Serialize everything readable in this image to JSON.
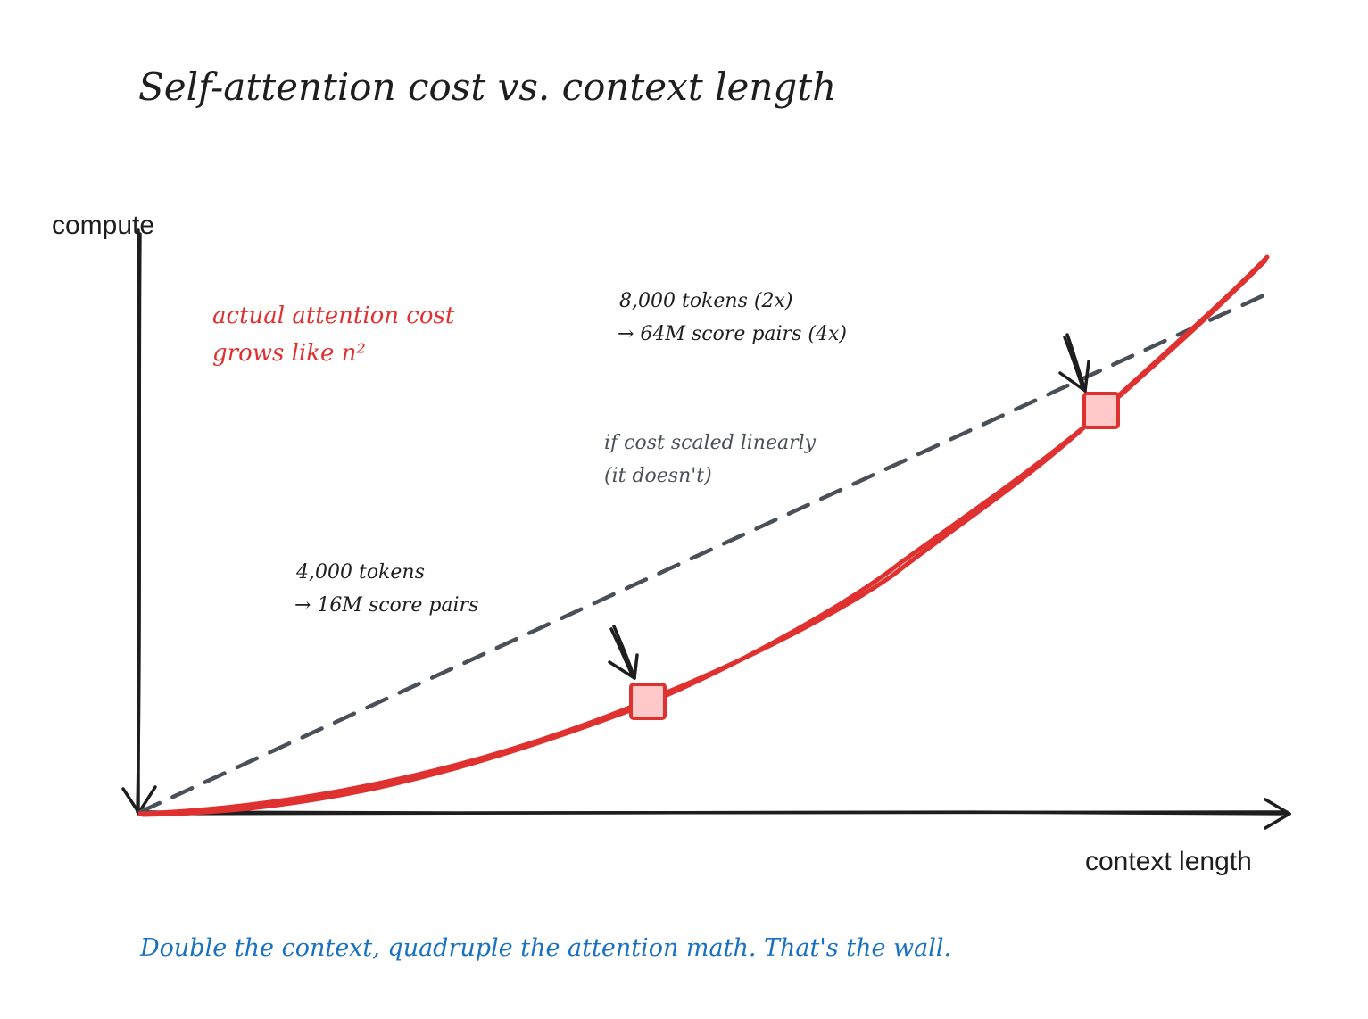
{
  "title": "Self-attention cost vs. context length",
  "axes": {
    "y_label": "compute",
    "x_label": "context length"
  },
  "annotations": {
    "quadratic_line1": "actual attention cost",
    "quadratic_line2": "grows like n²",
    "linear_line1": "if cost scaled linearly",
    "linear_line2": "(it doesn't)",
    "point_4k_line1": "4,000 tokens",
    "point_4k_line2": "→ 16M score pairs",
    "point_8k_line1": "8,000 tokens (2x)",
    "point_8k_line2": "→ 64M score pairs (4x)"
  },
  "footer": "Double the context, quadruple the attention math. That's the wall.",
  "colors": {
    "ink": "#1e1e1e",
    "quadratic": "#e03131",
    "marker_fill": "#ffc9c9",
    "linear": "#495057",
    "footer": "#1971c2",
    "note": "#343a40"
  }
}
